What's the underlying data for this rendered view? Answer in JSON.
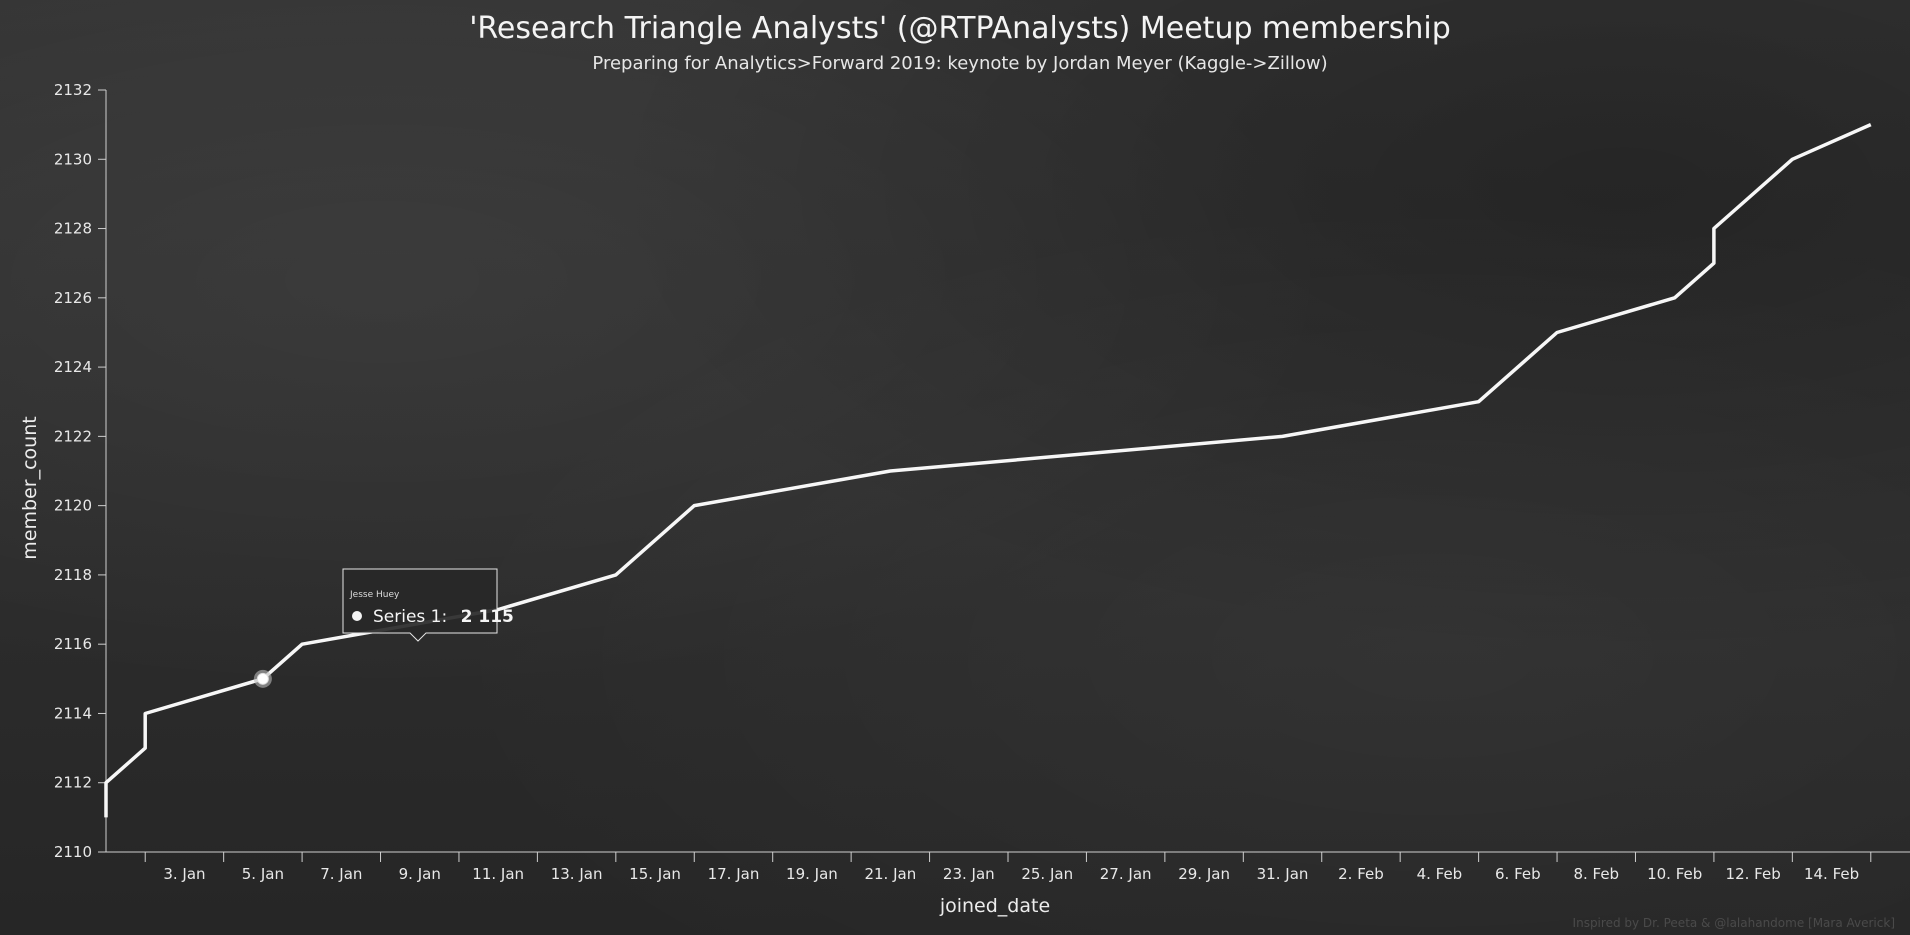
{
  "chart_data": {
    "type": "line",
    "title": "'Research Triangle Analysts' (@RTPAnalysts) Meetup membership",
    "subtitle": "Preparing for Analytics>Forward 2019: keynote by Jordan Meyer (Kaggle->Zillow)",
    "xlabel": "joined_date",
    "ylabel": "member_count",
    "ylim": [
      2110,
      2132
    ],
    "yticks": [
      2110,
      2112,
      2114,
      2116,
      2118,
      2120,
      2122,
      2124,
      2126,
      2128,
      2130,
      2132
    ],
    "ytick_labels": [
      "2110",
      "2112",
      "2114",
      "2116",
      "2118",
      "2120",
      "2122",
      "2124",
      "2126",
      "2128",
      "2130",
      "2132"
    ],
    "xlim": [
      "2019-01-01",
      "2019-02-16"
    ],
    "xtick_labels": [
      {
        "date": "2019-01-03",
        "label": "3. Jan"
      },
      {
        "date": "2019-01-05",
        "label": "5. Jan"
      },
      {
        "date": "2019-01-07",
        "label": "7. Jan"
      },
      {
        "date": "2019-01-09",
        "label": "9. Jan"
      },
      {
        "date": "2019-01-11",
        "label": "11. Jan"
      },
      {
        "date": "2019-01-13",
        "label": "13. Jan"
      },
      {
        "date": "2019-01-15",
        "label": "15. Jan"
      },
      {
        "date": "2019-01-17",
        "label": "17. Jan"
      },
      {
        "date": "2019-01-19",
        "label": "19. Jan"
      },
      {
        "date": "2019-01-21",
        "label": "21. Jan"
      },
      {
        "date": "2019-01-23",
        "label": "23. Jan"
      },
      {
        "date": "2019-01-25",
        "label": "25. Jan"
      },
      {
        "date": "2019-01-27",
        "label": "27. Jan"
      },
      {
        "date": "2019-01-29",
        "label": "29. Jan"
      },
      {
        "date": "2019-01-31",
        "label": "31. Jan"
      },
      {
        "date": "2019-02-02",
        "label": "2. Feb"
      },
      {
        "date": "2019-02-04",
        "label": "4. Feb"
      },
      {
        "date": "2019-02-06",
        "label": "6. Feb"
      },
      {
        "date": "2019-02-08",
        "label": "8. Feb"
      },
      {
        "date": "2019-02-10",
        "label": "10. Feb"
      },
      {
        "date": "2019-02-12",
        "label": "12. Feb"
      },
      {
        "date": "2019-02-14",
        "label": "14. Feb"
      }
    ],
    "series": [
      {
        "name": "Series 1",
        "color": "#f7f7f7",
        "points": [
          {
            "x": "2019-01-01",
            "y": 2111
          },
          {
            "x": "2019-01-01",
            "y": 2112
          },
          {
            "x": "2019-01-02",
            "y": 2113
          },
          {
            "x": "2019-01-02",
            "y": 2114
          },
          {
            "x": "2019-01-05",
            "y": 2115
          },
          {
            "x": "2019-01-06",
            "y": 2116
          },
          {
            "x": "2019-01-11",
            "y": 2117
          },
          {
            "x": "2019-01-14",
            "y": 2118
          },
          {
            "x": "2019-01-16",
            "y": 2120
          },
          {
            "x": "2019-01-21",
            "y": 2121
          },
          {
            "x": "2019-01-31",
            "y": 2122
          },
          {
            "x": "2019-02-05",
            "y": 2123
          },
          {
            "x": "2019-02-07",
            "y": 2125
          },
          {
            "x": "2019-02-10",
            "y": 2126
          },
          {
            "x": "2019-02-11",
            "y": 2127
          },
          {
            "x": "2019-02-11",
            "y": 2128
          },
          {
            "x": "2019-02-13",
            "y": 2130
          },
          {
            "x": "2019-02-15",
            "y": 2131
          }
        ]
      }
    ],
    "highlight": {
      "x": "2019-01-05",
      "y": 2115
    },
    "tooltip": {
      "name": "Jesse Huey",
      "series_label": "Series 1:",
      "value": "2 115"
    },
    "grid": false,
    "legend": "none"
  },
  "credit": "Inspired by Dr. Peeta & @lalahandome [Mara Averick]"
}
